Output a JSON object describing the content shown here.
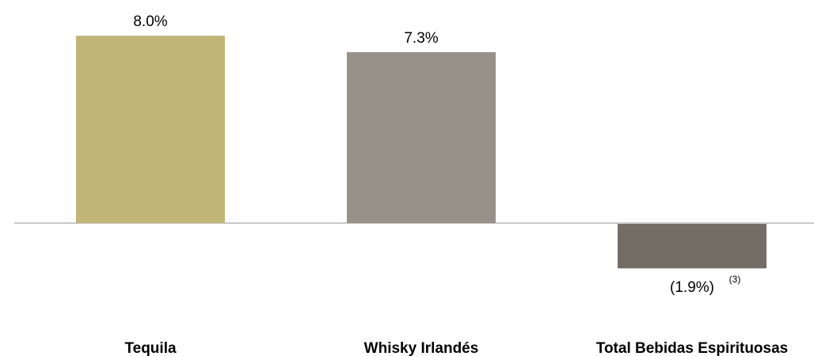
{
  "chart_data": {
    "type": "bar",
    "title": "",
    "xlabel": "",
    "ylabel": "",
    "categories": [
      "Tequila",
      "Whisky Irlandés",
      "Total Bebidas Espirituosas"
    ],
    "values": [
      8.0,
      7.3,
      -1.9
    ],
    "value_labels": [
      "8.0%",
      "7.3%",
      "(1.9%)"
    ],
    "footnotes": [
      "",
      "",
      "(3)"
    ],
    "colors": [
      "#c1b477",
      "#96928a",
      "#726e65"
    ],
    "axis_color": "#c8c8c8",
    "ylim": [
      -1.9,
      8.0
    ],
    "grid": false,
    "legend": "none"
  }
}
